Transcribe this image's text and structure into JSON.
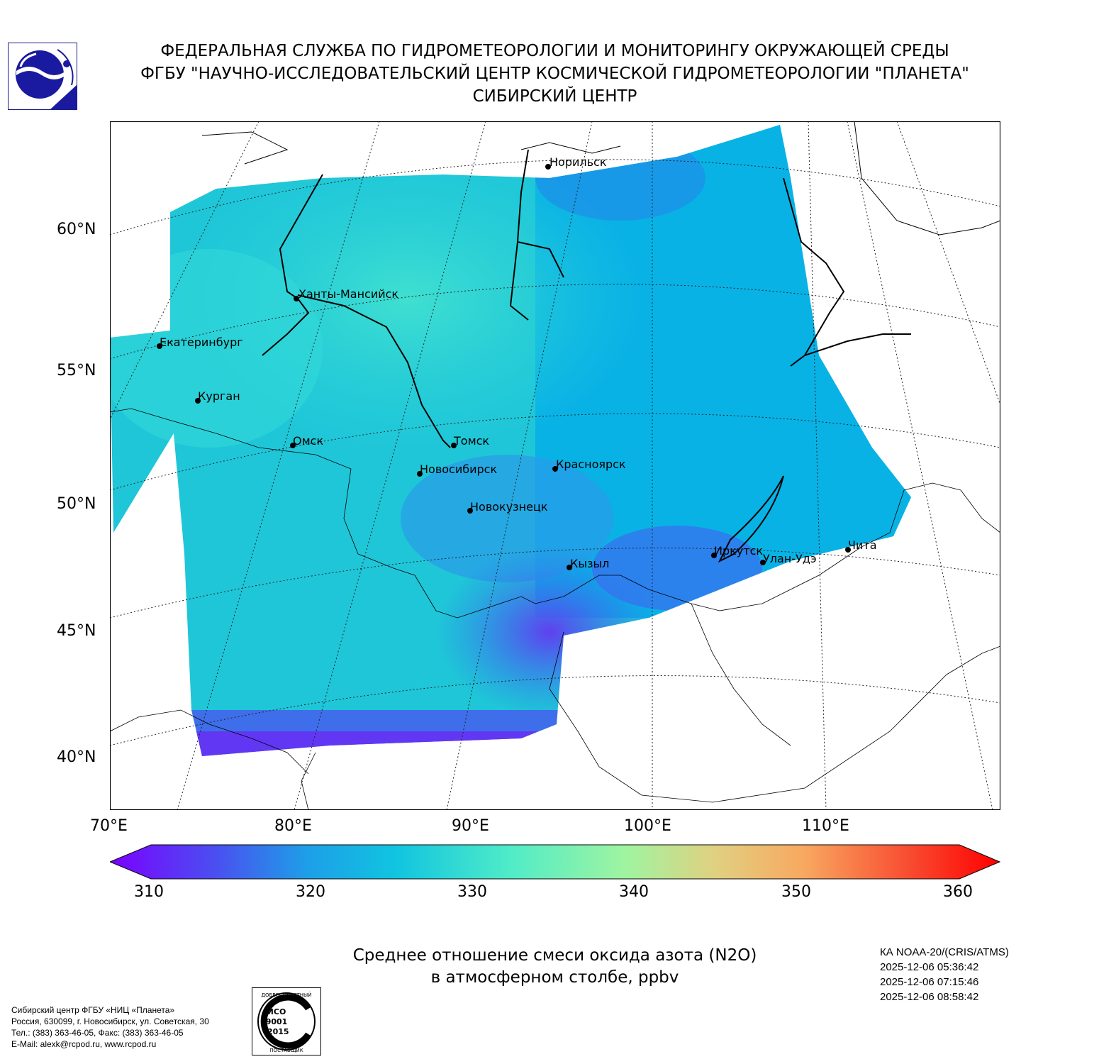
{
  "header": {
    "line1": "ФЕДЕРАЛЬНАЯ СЛУЖБА ПО ГИДРОМЕТЕОРОЛОГИИ И МОНИТОРИНГУ ОКРУЖАЮЩЕЙ СРЕДЫ",
    "line2": "ФГБУ \"НАУЧНО-ИССЛЕДОВАТЕЛЬСКИЙ ЦЕНТР КОСМИЧЕСКОЙ ГИДРОМЕТЕОРОЛОГИИ \"ПЛАНЕТА\"",
    "line3": "СИБИРСКИЙ ЦЕНТР"
  },
  "map": {
    "lat_labels": [
      "60°N",
      "55°N",
      "50°N",
      "45°N",
      "40°N"
    ],
    "lon_labels": [
      "70°E",
      "80°E",
      "90°E",
      "100°E",
      "110°E"
    ],
    "cities": [
      {
        "name": "Норильск"
      },
      {
        "name": "Ханты-Мансийск"
      },
      {
        "name": "Екатеринбург"
      },
      {
        "name": "Курган"
      },
      {
        "name": "Омск"
      },
      {
        "name": "Томск"
      },
      {
        "name": "Новосибирск"
      },
      {
        "name": "Красноярск"
      },
      {
        "name": "Новокузнецк"
      },
      {
        "name": "Иркутск"
      },
      {
        "name": "Улан-Удэ"
      },
      {
        "name": "Чита"
      },
      {
        "name": "Кызыл"
      }
    ]
  },
  "colorbar": {
    "min": 310,
    "max": 360,
    "ticks": [
      "310",
      "320",
      "330",
      "340",
      "350",
      "360"
    ],
    "colors": {
      "low": "#7b00ff",
      "mid_low": "#00b0ee",
      "mid": "#60f0c0",
      "mid_high": "#f8b060",
      "high": "#ff0000"
    }
  },
  "title": {
    "line1": "Среднее отношение смеси оксида азота (N2O)",
    "line2": "в атмосферном столбе, ppbv"
  },
  "satellite": {
    "name": "КА NOAA-20/(CRIS/ATMS)",
    "times": [
      "2025-12-06 05:36:42",
      "2025-12-06 07:15:46",
      "2025-12-06 08:58:42"
    ]
  },
  "footer": {
    "line1": "Сибирский центр ФГБУ «НИЦ «Планета»",
    "line2": "Россия, 630099, г. Новосибирск, ул. Советская, 30",
    "line3": "Тел.: (383) 363-46-05, Факс: (383) 363-46-05",
    "line4": "E-Mail: alexk@rcpod.ru, www.rcpod.ru"
  },
  "iso_badge": {
    "top_text": "ДОБРОСОВЕСТНЫЙ",
    "middle_text": [
      "ИСО",
      "9001",
      "-2015"
    ],
    "bottom_text": "ПОСТАВЩИК"
  }
}
